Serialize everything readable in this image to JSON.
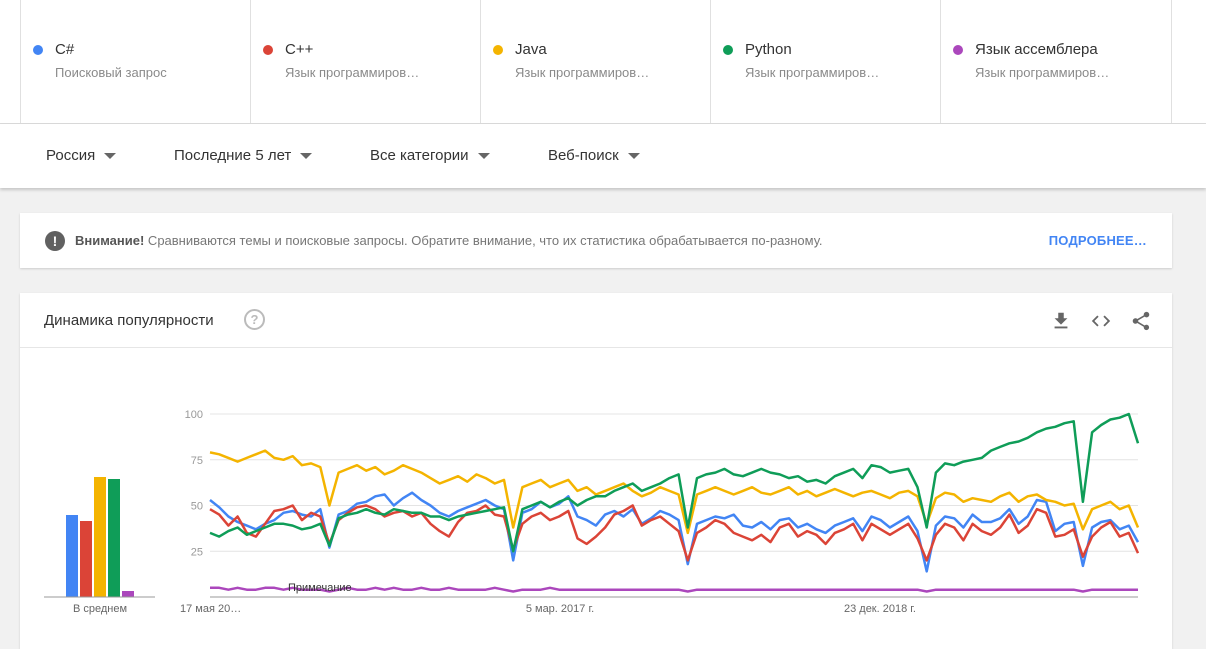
{
  "terms": [
    {
      "name": "C#",
      "sub": "Поисковый запрос",
      "color": "#4285f4"
    },
    {
      "name": "C++",
      "sub": "Язык программиров…",
      "color": "#db4437"
    },
    {
      "name": "Java",
      "sub": "Язык программиров…",
      "color": "#f4b400"
    },
    {
      "name": "Python",
      "sub": "Язык программиров…",
      "color": "#0f9d58"
    },
    {
      "name": "Язык ассемблера",
      "sub": "Язык программиров…",
      "color": "#ab47bc"
    }
  ],
  "filters": {
    "region": "Россия",
    "period": "Последние 5 лет",
    "category": "Все категории",
    "search_type": "Веб-поиск"
  },
  "notice": {
    "bold": "Внимание!",
    "text": " Сравниваются темы и поисковые запросы. Обратите внимание, что их статистика обрабатывается по-разному.",
    "link": "ПОДРОБНЕЕ…"
  },
  "card": {
    "title": "Динамика популярности"
  },
  "icons": {
    "warning": "warning-icon",
    "help": "help-icon",
    "download": "download-icon",
    "embed": "embed-code-icon",
    "share": "share-icon"
  },
  "chart_data": [
    {
      "type": "bar",
      "xlabel": "В среднем",
      "categories": [
        "C#",
        "C++",
        "Java",
        "Python",
        "Язык ассемблера"
      ],
      "values": [
        41,
        38,
        60,
        59,
        3
      ],
      "ylim": [
        0,
        100
      ],
      "colors": [
        "#4285f4",
        "#db4437",
        "#f4b400",
        "#0f9d58",
        "#ab47bc"
      ]
    },
    {
      "type": "line",
      "ylim": [
        0,
        100
      ],
      "yticks": [
        25,
        50,
        75,
        100
      ],
      "grid": true,
      "x_tick_labels": [
        "17 мая 20…",
        "5 мар. 2017 г.",
        "23 дек. 2018 г."
      ],
      "annotation": "Примечание",
      "series": [
        {
          "name": "C#",
          "color": "#4285f4",
          "values": [
            53,
            49,
            44,
            41,
            39,
            37,
            40,
            42,
            46,
            47,
            45,
            44,
            48,
            27,
            45,
            47,
            51,
            52,
            55,
            56,
            50,
            54,
            57,
            53,
            50,
            46,
            44,
            47,
            49,
            51,
            53,
            50,
            48,
            20,
            46,
            48,
            52,
            49,
            51,
            55,
            44,
            42,
            39,
            45,
            47,
            44,
            48,
            40,
            43,
            47,
            45,
            42,
            18,
            40,
            42,
            44,
            43,
            45,
            39,
            38,
            41,
            37,
            42,
            43,
            38,
            40,
            37,
            35,
            39,
            41,
            43,
            36,
            44,
            42,
            38,
            41,
            44,
            36,
            14,
            39,
            44,
            43,
            38,
            45,
            41,
            41,
            43,
            48,
            40,
            44,
            53,
            52,
            36,
            40,
            41,
            17,
            38,
            41,
            42,
            37,
            39,
            30
          ]
        },
        {
          "name": "C++",
          "color": "#db4437",
          "values": [
            48,
            45,
            39,
            44,
            35,
            33,
            40,
            47,
            48,
            50,
            42,
            46,
            44,
            29,
            42,
            46,
            49,
            50,
            48,
            44,
            46,
            47,
            44,
            46,
            40,
            36,
            33,
            41,
            46,
            47,
            50,
            45,
            44,
            26,
            40,
            44,
            46,
            42,
            44,
            47,
            32,
            29,
            33,
            38,
            45,
            47,
            50,
            39,
            42,
            44,
            40,
            36,
            20,
            35,
            38,
            42,
            40,
            35,
            33,
            31,
            34,
            30,
            38,
            40,
            33,
            36,
            34,
            29,
            35,
            37,
            40,
            31,
            40,
            37,
            34,
            37,
            40,
            32,
            20,
            34,
            40,
            38,
            31,
            40,
            36,
            34,
            38,
            45,
            35,
            39,
            48,
            46,
            33,
            34,
            37,
            22,
            33,
            38,
            41,
            33,
            35,
            24
          ]
        },
        {
          "name": "Java",
          "color": "#f4b400",
          "values": [
            79,
            78,
            76,
            74,
            76,
            78,
            80,
            76,
            75,
            77,
            72,
            73,
            71,
            50,
            68,
            70,
            72,
            69,
            71,
            67,
            69,
            72,
            70,
            68,
            65,
            62,
            64,
            66,
            63,
            67,
            65,
            62,
            64,
            38,
            60,
            62,
            64,
            60,
            62,
            64,
            58,
            60,
            56,
            58,
            60,
            62,
            58,
            55,
            57,
            60,
            58,
            56,
            35,
            56,
            58,
            60,
            58,
            56,
            58,
            60,
            57,
            56,
            58,
            60,
            56,
            58,
            55,
            57,
            59,
            57,
            55,
            57,
            58,
            56,
            54,
            57,
            58,
            55,
            40,
            54,
            57,
            56,
            52,
            54,
            53,
            52,
            55,
            57,
            52,
            55,
            56,
            53,
            52,
            50,
            51,
            37,
            48,
            50,
            52,
            48,
            50,
            38
          ]
        },
        {
          "name": "Python",
          "color": "#0f9d58",
          "values": [
            35,
            33,
            36,
            38,
            34,
            36,
            38,
            40,
            40,
            39,
            37,
            38,
            40,
            28,
            43,
            45,
            46,
            48,
            46,
            45,
            48,
            47,
            46,
            46,
            44,
            44,
            42,
            44,
            45,
            46,
            47,
            48,
            49,
            25,
            48,
            50,
            52,
            49,
            52,
            54,
            50,
            53,
            55,
            55,
            58,
            60,
            62,
            58,
            60,
            62,
            65,
            67,
            38,
            65,
            67,
            68,
            70,
            67,
            66,
            68,
            70,
            68,
            67,
            65,
            66,
            63,
            64,
            62,
            66,
            68,
            70,
            65,
            72,
            71,
            68,
            69,
            70,
            60,
            38,
            68,
            73,
            72,
            74,
            75,
            76,
            80,
            82,
            84,
            85,
            87,
            90,
            92,
            93,
            95,
            96,
            52,
            90,
            94,
            97,
            98,
            100,
            84
          ]
        },
        {
          "name": "Язык ассемблера",
          "color": "#ab47bc",
          "values": [
            5,
            5,
            4,
            5,
            4,
            4,
            5,
            5,
            4,
            5,
            4,
            4,
            4,
            3,
            4,
            5,
            4,
            4,
            5,
            4,
            5,
            4,
            4,
            5,
            4,
            4,
            5,
            4,
            4,
            4,
            4,
            5,
            4,
            3,
            4,
            4,
            4,
            5,
            4,
            4,
            4,
            4,
            4,
            4,
            4,
            4,
            4,
            4,
            4,
            4,
            4,
            4,
            3,
            4,
            4,
            4,
            4,
            4,
            4,
            4,
            4,
            4,
            4,
            4,
            4,
            4,
            4,
            4,
            4,
            4,
            4,
            4,
            4,
            4,
            4,
            4,
            4,
            4,
            3,
            4,
            4,
            4,
            4,
            4,
            4,
            4,
            4,
            4,
            4,
            4,
            4,
            4,
            4,
            4,
            4,
            3,
            4,
            4,
            4,
            4,
            4,
            4
          ]
        }
      ]
    }
  ]
}
